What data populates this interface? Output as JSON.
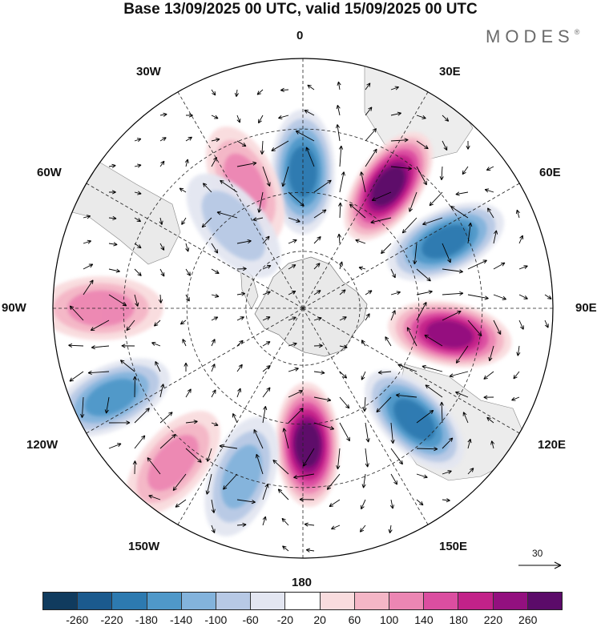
{
  "title": "Base 13/09/2025 00 UTC, valid 15/09/2025 00 UTC",
  "brand": {
    "name": "MODES",
    "mark": "®"
  },
  "map": {
    "projection": "south polar stereographic",
    "longitude_labels": {
      "top": "0",
      "bottom": "180",
      "left": "90W",
      "right": "90E",
      "upper_left_30": "30W",
      "upper_left_60": "60W",
      "upper_right_30": "30E",
      "upper_right_60": "60E",
      "lower_left_120": "120W",
      "lower_left_150": "150W",
      "lower_right_120": "120E",
      "lower_right_150": "150E"
    },
    "reference_vector_label": "30",
    "anomaly_centers": [
      {
        "lon": 0,
        "lat": -55,
        "value": -200
      },
      {
        "lon": 35,
        "lat": -52,
        "value": 250
      },
      {
        "lon": 65,
        "lat": -50,
        "value": -200
      },
      {
        "lon": 100,
        "lat": -52,
        "value": 210
      },
      {
        "lon": 135,
        "lat": -50,
        "value": -170
      },
      {
        "lon": 178,
        "lat": -55,
        "value": 260
      },
      {
        "lon": -160,
        "lat": -45,
        "value": -120
      },
      {
        "lon": -140,
        "lat": -40,
        "value": 110
      },
      {
        "lon": -115,
        "lat": -38,
        "value": -150
      },
      {
        "lon": -90,
        "lat": -40,
        "value": 90
      },
      {
        "lon": -25,
        "lat": -55,
        "value": 110
      },
      {
        "lon": -40,
        "lat": -62,
        "value": -60
      }
    ]
  },
  "colorbar": {
    "colors": [
      "#103b5e",
      "#1b5a8e",
      "#2d7ab0",
      "#4f98c9",
      "#83b3dc",
      "#b7c9e5",
      "#e3e6f1",
      "#ffffff",
      "#f9dcde",
      "#f4b6c6",
      "#ec86b3",
      "#db4ea0",
      "#c22289",
      "#93107f",
      "#5b0b69"
    ],
    "ticks": [
      "-260",
      "-220",
      "-180",
      "-140",
      "-100",
      "-60",
      "-20",
      "20",
      "60",
      "100",
      "140",
      "180",
      "220",
      "260"
    ]
  }
}
